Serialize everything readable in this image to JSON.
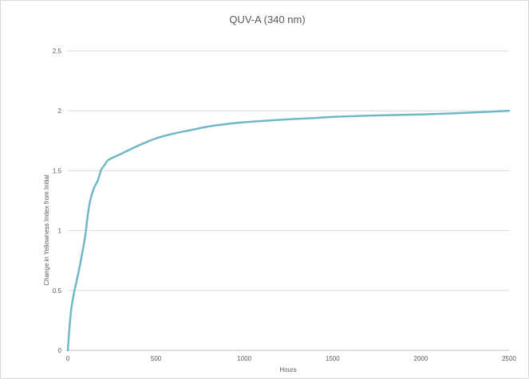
{
  "chart_data": {
    "type": "line",
    "title": "QUV-A (340 nm)",
    "xlabel": "Hours",
    "ylabel": "Change in Yellowness Index from Initial",
    "xlim": [
      0,
      2500
    ],
    "ylim": [
      0,
      2.5
    ],
    "xticks": [
      0,
      500,
      1000,
      1500,
      2000,
      2500
    ],
    "yticks": [
      0,
      0.5,
      1,
      1.5,
      2,
      2.5
    ],
    "ytick_labels": [
      "0",
      "0.5",
      "1",
      "1.5",
      "2",
      "2.5"
    ],
    "grid": "horizontal",
    "legend": "none",
    "series": [
      {
        "color": "#70b8c8",
        "x": [
          0,
          10,
          20,
          35,
          50,
          70,
          90,
          100,
          115,
          130,
          150,
          170,
          190,
          210,
          230,
          300,
          400,
          500,
          600,
          700,
          800,
          900,
          1000,
          1200,
          1400,
          1500,
          1700,
          2000,
          2200,
          2500
        ],
        "y": [
          0,
          0.2,
          0.35,
          0.48,
          0.58,
          0.72,
          0.88,
          0.97,
          1.15,
          1.27,
          1.36,
          1.42,
          1.51,
          1.55,
          1.59,
          1.64,
          1.71,
          1.77,
          1.81,
          1.84,
          1.87,
          1.89,
          1.905,
          1.925,
          1.94,
          1.95,
          1.96,
          1.97,
          1.98,
          2.0
        ]
      }
    ]
  }
}
